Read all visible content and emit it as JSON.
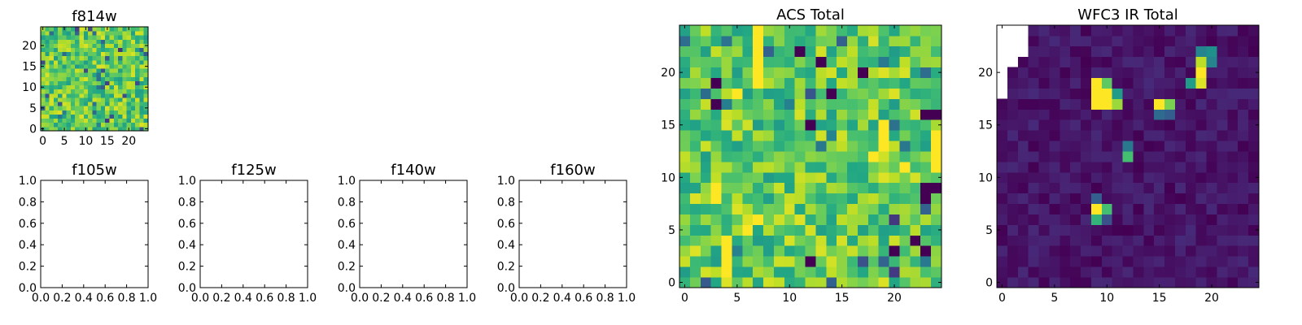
{
  "chart_data": [
    {
      "type": "heatmap",
      "title": "f814w",
      "xlim": [
        -0.5,
        24.5
      ],
      "ylim": [
        -0.5,
        24.5
      ],
      "xticks": [
        0,
        5,
        10,
        15,
        20
      ],
      "yticks": [
        0,
        5,
        10,
        15,
        20
      ],
      "grid": false,
      "colormap": "viridis",
      "rows": 25,
      "cols": 25,
      "value_range": [
        0,
        1
      ],
      "seed": 17,
      "levels": [
        0.55,
        0.95
      ],
      "lowvalue_fraction": 0.05
    },
    {
      "type": "empty",
      "title": "f105w",
      "xlim": [
        0,
        1
      ],
      "ylim": [
        0,
        1
      ],
      "xticks": [
        "0.0",
        "0.2",
        "0.4",
        "0.6",
        "0.8",
        "1.0"
      ],
      "yticks": [
        "0.0",
        "0.2",
        "0.4",
        "0.6",
        "0.8",
        "1.0"
      ]
    },
    {
      "type": "empty",
      "title": "f125w",
      "xlim": [
        0,
        1
      ],
      "ylim": [
        0,
        1
      ],
      "xticks": [
        "0.0",
        "0.2",
        "0.4",
        "0.6",
        "0.8",
        "1.0"
      ],
      "yticks": [
        "0.0",
        "0.2",
        "0.4",
        "0.6",
        "0.8",
        "1.0"
      ]
    },
    {
      "type": "empty",
      "title": "f140w",
      "xlim": [
        0,
        1
      ],
      "ylim": [
        0,
        1
      ],
      "xticks": [
        "0.0",
        "0.2",
        "0.4",
        "0.6",
        "0.8",
        "1.0"
      ],
      "yticks": [
        "0.0",
        "0.2",
        "0.4",
        "0.6",
        "0.8",
        "1.0"
      ]
    },
    {
      "type": "empty",
      "title": "f160w",
      "xlim": [
        0,
        1
      ],
      "ylim": [
        0,
        1
      ],
      "xticks": [
        "0.0",
        "0.2",
        "0.4",
        "0.6",
        "0.8",
        "1.0"
      ],
      "yticks": [
        "0.0",
        "0.2",
        "0.4",
        "0.6",
        "0.8",
        "1.0"
      ]
    },
    {
      "type": "heatmap",
      "title": "ACS Total",
      "xlim": [
        -0.5,
        24.5
      ],
      "ylim": [
        -0.5,
        24.5
      ],
      "xticks": [
        0,
        5,
        10,
        15,
        20
      ],
      "yticks": [
        0,
        5,
        10,
        15,
        20
      ],
      "grid": false,
      "colormap": "viridis",
      "rows": 25,
      "cols": 25,
      "value_range": [
        0,
        1
      ],
      "seed": 42,
      "levels": [
        0.55,
        0.95
      ],
      "lowvalue_fraction": 0.05,
      "dark_cells": [
        [
          21,
          13
        ],
        [
          22,
          11
        ],
        [
          15,
          12
        ],
        [
          16,
          23
        ],
        [
          16,
          24
        ],
        [
          9,
          23
        ],
        [
          8,
          23
        ],
        [
          9,
          24
        ],
        [
          4,
          22
        ],
        [
          3,
          23
        ],
        [
          3,
          20
        ],
        [
          2,
          12
        ],
        [
          17,
          3
        ],
        [
          19,
          3
        ],
        [
          20,
          17
        ],
        [
          18,
          14
        ],
        [
          14,
          19
        ]
      ],
      "bright_cells": [
        [
          24,
          7
        ],
        [
          23,
          7
        ],
        [
          22,
          7
        ],
        [
          21,
          7
        ],
        [
          20,
          7
        ],
        [
          19,
          7
        ],
        [
          18,
          5
        ],
        [
          9,
          3
        ],
        [
          8,
          3
        ],
        [
          6,
          7
        ],
        [
          4,
          4
        ],
        [
          3,
          4
        ],
        [
          2,
          4
        ],
        [
          1,
          4
        ],
        [
          5,
          6
        ],
        [
          15,
          19
        ],
        [
          14,
          19
        ],
        [
          13,
          19
        ],
        [
          12,
          18
        ],
        [
          11,
          21
        ],
        [
          14,
          24
        ],
        [
          13,
          24
        ],
        [
          12,
          24
        ],
        [
          11,
          24
        ]
      ]
    },
    {
      "type": "heatmap",
      "title": "WFC3 IR Total",
      "xlim": [
        -0.5,
        24.5
      ],
      "ylim": [
        -0.5,
        24.5
      ],
      "xticks": [
        0,
        5,
        10,
        15,
        20
      ],
      "yticks": [
        0,
        5,
        10,
        15,
        20
      ],
      "grid": false,
      "colormap": "viridis",
      "rows": 25,
      "cols": 25,
      "value_range": [
        0,
        1
      ],
      "seed": 7,
      "background_range": [
        0.0,
        0.12
      ],
      "masked_cells": [
        [
          24,
          0
        ],
        [
          24,
          1
        ],
        [
          24,
          2
        ],
        [
          23,
          0
        ],
        [
          23,
          1
        ],
        [
          23,
          2
        ],
        [
          22,
          0
        ],
        [
          22,
          1
        ],
        [
          22,
          2
        ],
        [
          21,
          0
        ],
        [
          21,
          1
        ],
        [
          20,
          0
        ],
        [
          19,
          0
        ],
        [
          18,
          0
        ]
      ],
      "hot_cells": [
        [
          19,
          9,
          1.0
        ],
        [
          19,
          10,
          0.75
        ],
        [
          18,
          9,
          1.0
        ],
        [
          18,
          10,
          1.0
        ],
        [
          18,
          11,
          0.55
        ],
        [
          17,
          9,
          1.0
        ],
        [
          17,
          10,
          1.0
        ],
        [
          17,
          11,
          0.85
        ],
        [
          17,
          15,
          1.0
        ],
        [
          17,
          16,
          0.8
        ],
        [
          16,
          15,
          0.35
        ],
        [
          16,
          16,
          0.3
        ],
        [
          22,
          19,
          0.45
        ],
        [
          22,
          20,
          0.5
        ],
        [
          21,
          19,
          0.9
        ],
        [
          21,
          20,
          0.45
        ],
        [
          20,
          19,
          1.0
        ],
        [
          19,
          18,
          0.55
        ],
        [
          19,
          19,
          0.95
        ],
        [
          13,
          12,
          0.4
        ],
        [
          12,
          12,
          0.7
        ],
        [
          7,
          9,
          1.0
        ],
        [
          7,
          10,
          0.7
        ],
        [
          6,
          9,
          0.65
        ],
        [
          6,
          10,
          0.25
        ],
        [
          8,
          9,
          0.3
        ]
      ]
    }
  ]
}
